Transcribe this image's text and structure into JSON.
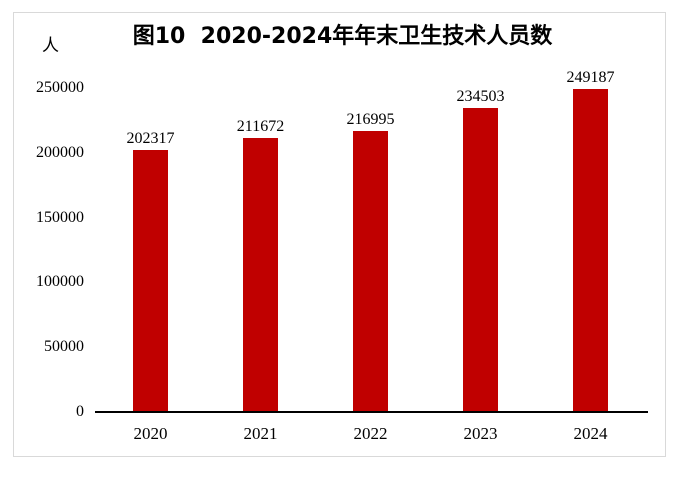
{
  "chart_data": {
    "type": "bar",
    "title": "图10  2020-2024年年末卫生技术人员数",
    "unit_label": "人",
    "categories": [
      "2020",
      "2021",
      "2022",
      "2023",
      "2024"
    ],
    "values": [
      202317,
      211672,
      216995,
      234503,
      249187
    ],
    "yticks": [
      0,
      50000,
      100000,
      150000,
      200000,
      250000
    ],
    "ylim": [
      0,
      250000
    ],
    "bar_color": "#C00000",
    "text_color": "#000000",
    "figure_border_color": "#D9D9D9",
    "grid": false,
    "legend": false,
    "data_labels_shown": true
  }
}
